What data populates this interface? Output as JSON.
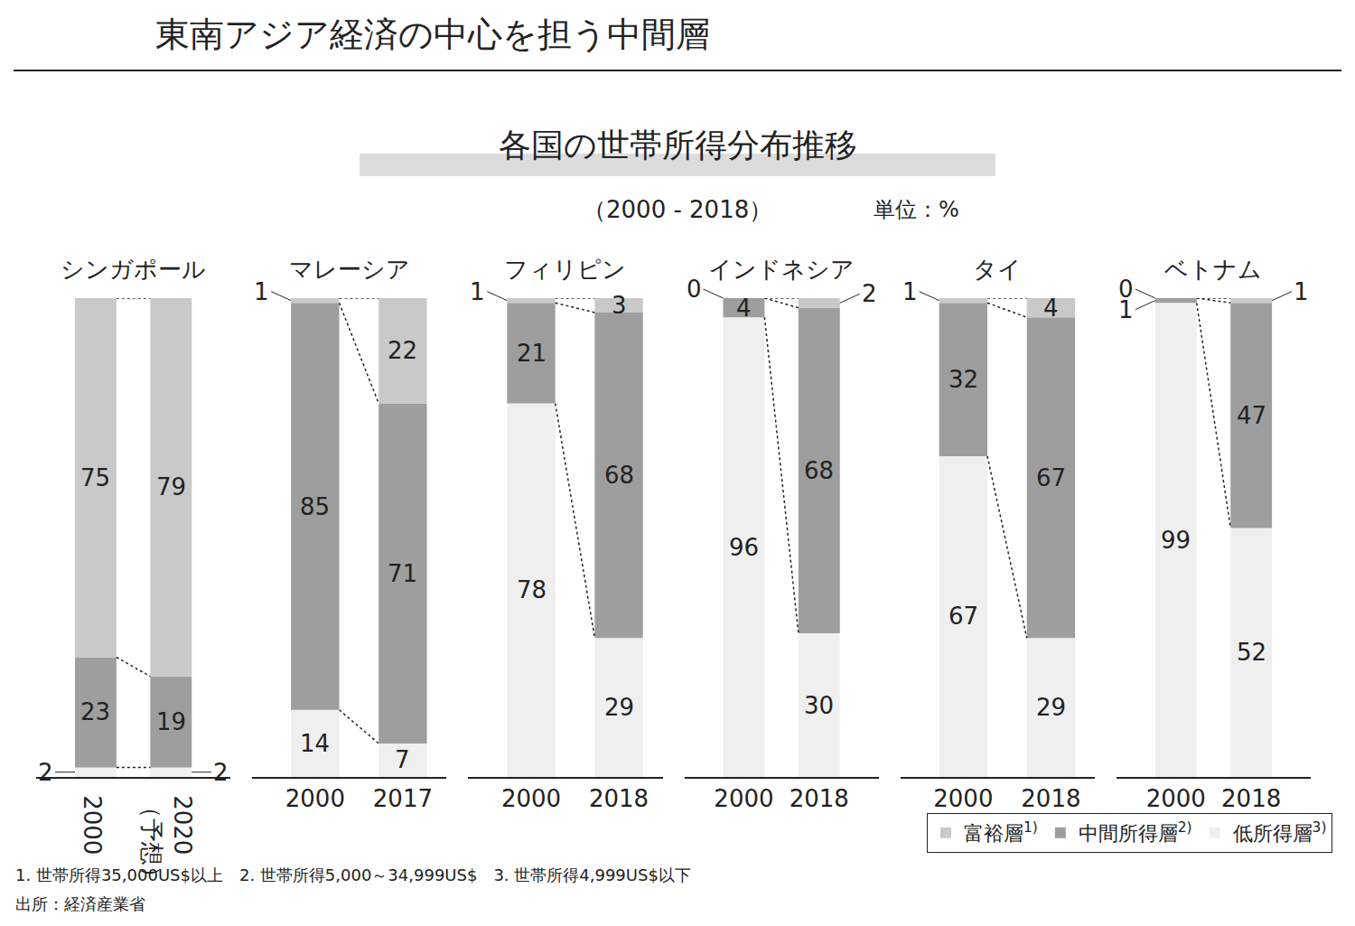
{
  "title": "東南アジア経済の中心を担う中間層",
  "subtitle": "各国の世帯所得分布推移",
  "period": "（2000 - 2018）",
  "unit": "単位：%",
  "notes": [
    "1. 世帯所得35,000US$以上",
    "2. 世帯所得5,000～34,999US$",
    "3. 世帯所得4,999US$以下"
  ],
  "source": "出所：経済産業省",
  "legend": "bottom right",
  "chart_data": [
    {
      "type": "bar",
      "stacked": true,
      "data_labels": true,
      "tick_labels": "x",
      "ylim": [
        0,
        100
      ],
      "title": "シンガポール",
      "categories": [
        "2000",
        "2020\n（予想）"
      ],
      "series": [
        {
          "name": "低所得層",
          "name_note": "3)",
          "color": "#efefef",
          "values": [
            2,
            2
          ]
        },
        {
          "name": "中間所得層",
          "name_note": "2)",
          "color": "#9e9e9e",
          "values": [
            23,
            19
          ]
        },
        {
          "name": "富裕層",
          "name_note": "1)",
          "color": "#c9c9c9",
          "values": [
            75,
            79
          ]
        }
      ]
    },
    {
      "type": "bar",
      "stacked": true,
      "data_labels": true,
      "tick_labels": "x",
      "ylim": [
        0,
        100
      ],
      "title": "マレーシア",
      "categories": [
        "2000",
        "2017"
      ],
      "series": [
        {
          "name": "低所得層",
          "name_note": "3)",
          "color": "#efefef",
          "values": [
            14,
            7
          ]
        },
        {
          "name": "中間所得層",
          "name_note": "2)",
          "color": "#9e9e9e",
          "values": [
            85,
            71
          ]
        },
        {
          "name": "富裕層",
          "name_note": "1)",
          "color": "#c9c9c9",
          "values": [
            1,
            22
          ]
        }
      ]
    },
    {
      "type": "bar",
      "stacked": true,
      "data_labels": true,
      "tick_labels": "x",
      "ylim": [
        0,
        100
      ],
      "title": "フィリピン",
      "categories": [
        "2000",
        "2018"
      ],
      "series": [
        {
          "name": "低所得層",
          "name_note": "3)",
          "color": "#efefef",
          "values": [
            78,
            29
          ]
        },
        {
          "name": "中間所得層",
          "name_note": "2)",
          "color": "#9e9e9e",
          "values": [
            21,
            68
          ]
        },
        {
          "name": "富裕層",
          "name_note": "1)",
          "color": "#c9c9c9",
          "values": [
            1,
            3
          ]
        }
      ]
    },
    {
      "type": "bar",
      "stacked": true,
      "data_labels": true,
      "tick_labels": "x",
      "ylim": [
        0,
        100
      ],
      "title": "インドネシア",
      "categories": [
        "2000",
        "2018"
      ],
      "series": [
        {
          "name": "低所得層",
          "name_note": "3)",
          "color": "#efefef",
          "values": [
            96,
            30
          ]
        },
        {
          "name": "中間所得層",
          "name_note": "2)",
          "color": "#9e9e9e",
          "values": [
            4,
            68
          ]
        },
        {
          "name": "富裕層",
          "name_note": "1)",
          "color": "#c9c9c9",
          "values": [
            0,
            2
          ]
        }
      ]
    },
    {
      "type": "bar",
      "stacked": true,
      "data_labels": true,
      "tick_labels": "x",
      "ylim": [
        0,
        100
      ],
      "title": "タイ",
      "categories": [
        "2000",
        "2018"
      ],
      "series": [
        {
          "name": "低所得層",
          "name_note": "3)",
          "color": "#efefef",
          "values": [
            67,
            29
          ]
        },
        {
          "name": "中間所得層",
          "name_note": "2)",
          "color": "#9e9e9e",
          "values": [
            32,
            67
          ]
        },
        {
          "name": "富裕層",
          "name_note": "1)",
          "color": "#c9c9c9",
          "values": [
            1,
            4
          ]
        }
      ]
    },
    {
      "type": "bar",
      "stacked": true,
      "data_labels": true,
      "tick_labels": "x",
      "ylim": [
        0,
        100
      ],
      "title": "ベトナム",
      "categories": [
        "2000",
        "2018"
      ],
      "series": [
        {
          "name": "低所得層",
          "name_note": "3)",
          "color": "#efefef",
          "values": [
            99,
            52
          ]
        },
        {
          "name": "中間所得層",
          "name_note": "2)",
          "color": "#9e9e9e",
          "values": [
            1,
            47
          ]
        },
        {
          "name": "富裕層",
          "name_note": "1)",
          "color": "#c9c9c9",
          "values": [
            0,
            1
          ]
        }
      ]
    }
  ]
}
